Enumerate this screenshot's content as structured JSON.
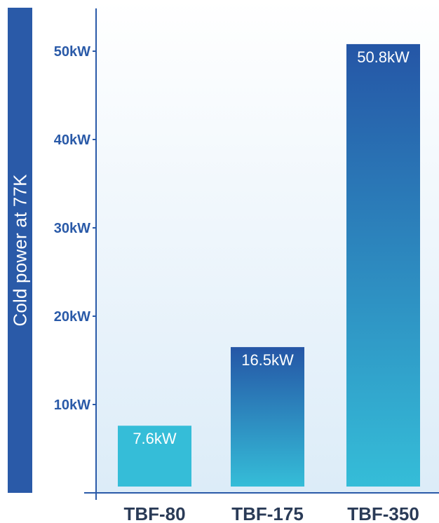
{
  "colors": {
    "accent": "#2a5aa8",
    "bar_top": "#2556a6",
    "bar_bottom": "#35bdd8",
    "bar_short_top": "#2c8fcc",
    "bg_top": "#ffffff",
    "bg_bottom": "#dcecf8"
  },
  "chart_data": {
    "type": "bar",
    "title": "",
    "xlabel": "",
    "ylabel": "Cold power at 77K",
    "categories": [
      "TBF-80",
      "TBF-175",
      "TBF-350"
    ],
    "values": [
      7.6,
      16.5,
      50.8
    ],
    "value_labels": [
      "7.6kW",
      "16.5kW",
      "50.8kW"
    ],
    "yticks": [
      10,
      20,
      30,
      40,
      50
    ],
    "ytick_labels": [
      "10kW",
      "20kW",
      "30kW",
      "40kW",
      "50kW"
    ],
    "ylim": [
      0,
      51.5
    ],
    "unit": "kW",
    "grid": false,
    "legend": "none"
  }
}
